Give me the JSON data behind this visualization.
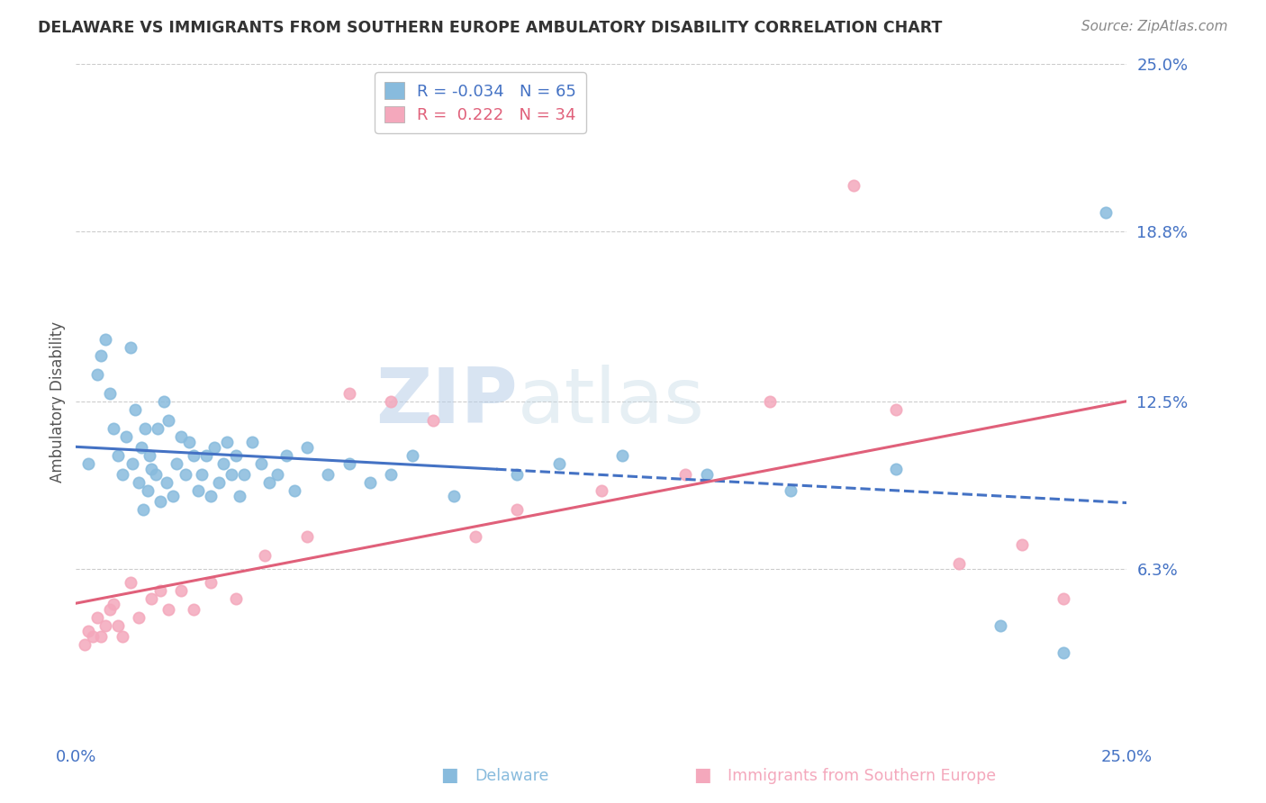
{
  "title": "DELAWARE VS IMMIGRANTS FROM SOUTHERN EUROPE AMBULATORY DISABILITY CORRELATION CHART",
  "source": "Source: ZipAtlas.com",
  "ylabel": "Ambulatory Disability",
  "xlim": [
    0.0,
    25.0
  ],
  "ylim": [
    0.0,
    25.0
  ],
  "yticks": [
    6.3,
    12.5,
    18.8,
    25.0
  ],
  "ytick_labels": [
    "6.3%",
    "12.5%",
    "18.8%",
    "25.0%"
  ],
  "xticks": [
    0.0,
    25.0
  ],
  "xtick_labels": [
    "0.0%",
    "25.0%"
  ],
  "legend_label_delaware": "Delaware",
  "legend_label_immigrants": "Immigrants from Southern Europe",
  "R_delaware": -0.034,
  "N_delaware": 65,
  "R_immigrants": 0.222,
  "N_immigrants": 34,
  "delaware_color": "#88bbdd",
  "immigrants_color": "#f4a8bc",
  "delaware_line_color": "#4472c4",
  "immigrants_line_color": "#e0607a",
  "background_color": "#ffffff",
  "grid_color": "#cccccc",
  "watermark_text": "ZIPatlas",
  "watermark_color": "#c8d8ea",
  "title_color": "#333333",
  "source_color": "#888888",
  "axis_label_color": "#555555",
  "tick_label_color": "#4472c4",
  "legend_border_color": "#bbbbbb",
  "delaware_x": [
    0.3,
    0.5,
    0.6,
    0.7,
    0.8,
    0.9,
    1.0,
    1.1,
    1.2,
    1.3,
    1.35,
    1.4,
    1.5,
    1.55,
    1.6,
    1.65,
    1.7,
    1.75,
    1.8,
    1.9,
    1.95,
    2.0,
    2.1,
    2.15,
    2.2,
    2.3,
    2.4,
    2.5,
    2.6,
    2.7,
    2.8,
    2.9,
    3.0,
    3.1,
    3.2,
    3.3,
    3.4,
    3.5,
    3.6,
    3.7,
    3.8,
    3.9,
    4.0,
    4.2,
    4.4,
    4.6,
    4.8,
    5.0,
    5.2,
    5.5,
    6.0,
    6.5,
    7.0,
    7.5,
    8.0,
    9.0,
    10.5,
    11.5,
    13.0,
    15.0,
    17.0,
    19.5,
    22.0,
    23.5,
    24.5
  ],
  "delaware_y": [
    10.2,
    13.5,
    14.2,
    14.8,
    12.8,
    11.5,
    10.5,
    9.8,
    11.2,
    14.5,
    10.2,
    12.2,
    9.5,
    10.8,
    8.5,
    11.5,
    9.2,
    10.5,
    10.0,
    9.8,
    11.5,
    8.8,
    12.5,
    9.5,
    11.8,
    9.0,
    10.2,
    11.2,
    9.8,
    11.0,
    10.5,
    9.2,
    9.8,
    10.5,
    9.0,
    10.8,
    9.5,
    10.2,
    11.0,
    9.8,
    10.5,
    9.0,
    9.8,
    11.0,
    10.2,
    9.5,
    9.8,
    10.5,
    9.2,
    10.8,
    9.8,
    10.2,
    9.5,
    9.8,
    10.5,
    9.0,
    9.8,
    10.2,
    10.5,
    9.8,
    9.2,
    10.0,
    4.2,
    3.2,
    19.5
  ],
  "immigrants_x": [
    0.2,
    0.3,
    0.4,
    0.5,
    0.6,
    0.7,
    0.8,
    0.9,
    1.0,
    1.1,
    1.3,
    1.5,
    1.8,
    2.0,
    2.2,
    2.5,
    2.8,
    3.2,
    3.8,
    4.5,
    5.5,
    6.5,
    7.5,
    8.5,
    9.5,
    10.5,
    12.5,
    14.5,
    16.5,
    18.5,
    19.5,
    21.0,
    22.5,
    23.5
  ],
  "immigrants_y": [
    3.5,
    4.0,
    3.8,
    4.5,
    3.8,
    4.2,
    4.8,
    5.0,
    4.2,
    3.8,
    5.8,
    4.5,
    5.2,
    5.5,
    4.8,
    5.5,
    4.8,
    5.8,
    5.2,
    6.8,
    7.5,
    12.8,
    12.5,
    11.8,
    7.5,
    8.5,
    9.2,
    9.8,
    12.5,
    20.5,
    12.2,
    6.5,
    7.2,
    5.2
  ]
}
